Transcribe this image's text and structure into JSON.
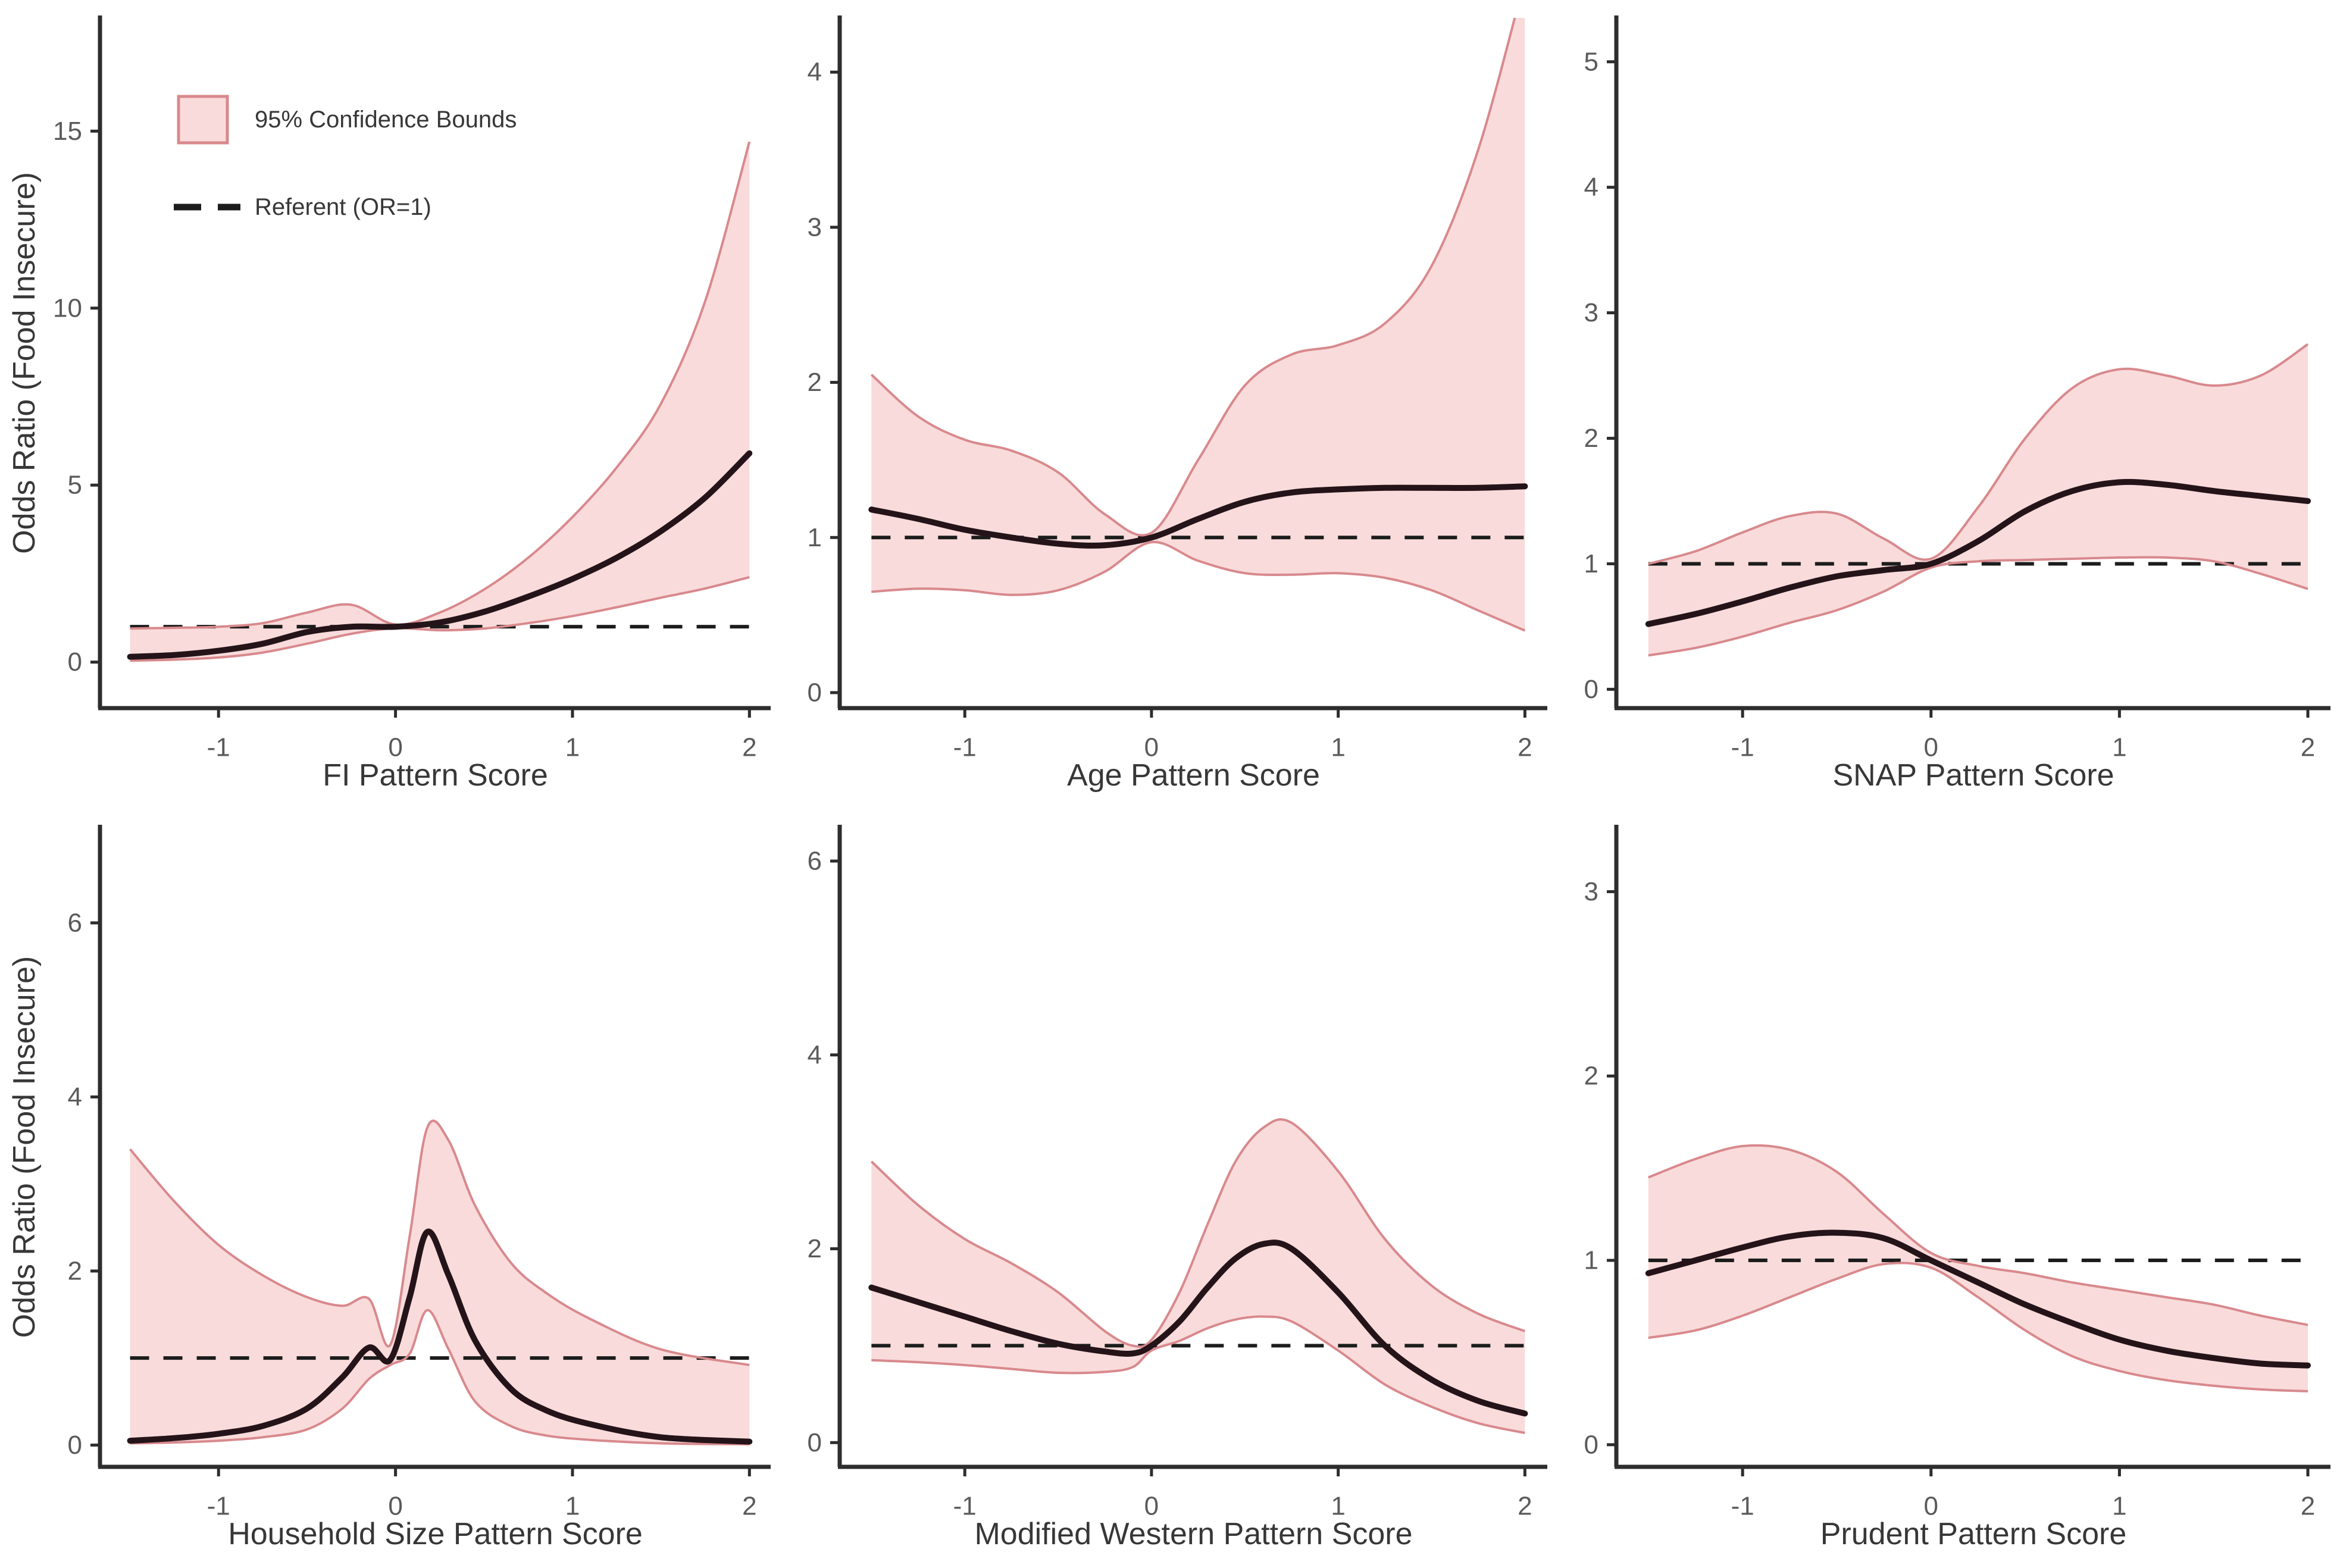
{
  "figure_title": "",
  "y_axis_label": "Odds Ratio (Food Insecure)",
  "legend": {
    "confidence_label": "95% Confidence Bounds",
    "referent_label": "Referent (OR=1)"
  },
  "colors": {
    "background": "#ffffff",
    "ribbon_fill": "#f9dbdb",
    "ribbon_edge": "#d8898d",
    "estimate_line": "#241419",
    "referent_line": "#1c1c1c",
    "spine": "#2d2d2d",
    "tick_label": "#5a5a5a",
    "axis_title": "#373737"
  },
  "chart_data": [
    {
      "key": "fi",
      "type": "line",
      "xlabel": "FI Pattern Score",
      "xlim": [
        -1.67,
        2.12
      ],
      "ylim": [
        -1.3,
        18.2
      ],
      "x_ticks": [
        -1,
        0,
        1,
        2
      ],
      "y_ticks": [
        0,
        5,
        10,
        15
      ],
      "show_y_label": true,
      "show_legend": true,
      "x": [
        -1.5,
        -1.25,
        -1,
        -0.75,
        -0.5,
        -0.25,
        0,
        0.25,
        0.5,
        0.75,
        1,
        1.25,
        1.5,
        1.75,
        2
      ],
      "estimate": [
        0.15,
        0.2,
        0.32,
        0.52,
        0.85,
        1.0,
        1.0,
        1.12,
        1.42,
        1.85,
        2.35,
        2.95,
        3.7,
        4.65,
        5.9
      ],
      "lower": [
        0.04,
        0.07,
        0.13,
        0.27,
        0.52,
        0.8,
        0.96,
        0.9,
        0.95,
        1.1,
        1.3,
        1.55,
        1.82,
        2.08,
        2.4
      ],
      "upper": [
        0.95,
        0.97,
        1.0,
        1.1,
        1.4,
        1.62,
        1.06,
        1.4,
        2.05,
        2.95,
        4.1,
        5.5,
        7.3,
        10.2,
        14.7
      ],
      "referent": 1
    },
    {
      "key": "age",
      "type": "line",
      "xlabel": "Age Pattern Score",
      "xlim": [
        -1.67,
        2.12
      ],
      "ylim": [
        -0.1,
        4.35
      ],
      "x_ticks": [
        -1,
        0,
        1,
        2
      ],
      "y_ticks": [
        0,
        1,
        2,
        3,
        4
      ],
      "show_y_label": false,
      "show_legend": false,
      "x": [
        -1.5,
        -1.25,
        -1,
        -0.75,
        -0.5,
        -0.25,
        0,
        0.25,
        0.5,
        0.75,
        1,
        1.25,
        1.5,
        1.75,
        2
      ],
      "estimate": [
        1.18,
        1.12,
        1.05,
        1.0,
        0.96,
        0.95,
        1.0,
        1.12,
        1.23,
        1.29,
        1.31,
        1.32,
        1.32,
        1.32,
        1.33
      ],
      "lower": [
        0.65,
        0.67,
        0.66,
        0.63,
        0.66,
        0.78,
        0.97,
        0.85,
        0.77,
        0.76,
        0.77,
        0.74,
        0.66,
        0.53,
        0.4
      ],
      "upper": [
        2.05,
        1.78,
        1.63,
        1.56,
        1.42,
        1.15,
        1.03,
        1.5,
        1.98,
        2.18,
        2.24,
        2.38,
        2.75,
        3.5,
        4.6
      ],
      "referent": 1
    },
    {
      "key": "snap",
      "type": "line",
      "xlabel": "SNAP Pattern Score",
      "xlim": [
        -1.67,
        2.12
      ],
      "ylim": [
        -0.15,
        5.35
      ],
      "x_ticks": [
        -1,
        0,
        1,
        2
      ],
      "y_ticks": [
        0,
        1,
        2,
        3,
        4,
        5
      ],
      "show_y_label": false,
      "show_legend": false,
      "x": [
        -1.5,
        -1.25,
        -1,
        -0.75,
        -0.5,
        -0.25,
        0,
        0.25,
        0.5,
        0.75,
        1,
        1.25,
        1.5,
        1.75,
        2
      ],
      "estimate": [
        0.52,
        0.6,
        0.7,
        0.81,
        0.9,
        0.95,
        1.0,
        1.18,
        1.42,
        1.58,
        1.65,
        1.63,
        1.58,
        1.54,
        1.5
      ],
      "lower": [
        0.27,
        0.33,
        0.42,
        0.53,
        0.63,
        0.78,
        0.97,
        1.02,
        1.03,
        1.04,
        1.05,
        1.05,
        1.02,
        0.92,
        0.8
      ],
      "upper": [
        1.0,
        1.1,
        1.25,
        1.38,
        1.4,
        1.2,
        1.04,
        1.45,
        2.0,
        2.4,
        2.55,
        2.5,
        2.42,
        2.5,
        2.75
      ],
      "referent": 1
    },
    {
      "key": "household",
      "type": "line",
      "xlabel": "Household Size Pattern Score",
      "xlim": [
        -1.67,
        2.12
      ],
      "ylim": [
        -0.25,
        7.1
      ],
      "x_ticks": [
        -1,
        0,
        1,
        2
      ],
      "y_ticks": [
        0,
        2,
        4,
        6
      ],
      "show_y_label": true,
      "show_legend": false,
      "x": [
        -1.5,
        -1.25,
        -1,
        -0.75,
        -0.5,
        -0.3,
        -0.15,
        -0.03,
        0.08,
        0.18,
        0.3,
        0.45,
        0.65,
        0.85,
        1.1,
        1.5,
        2
      ],
      "estimate": [
        0.05,
        0.08,
        0.13,
        0.22,
        0.42,
        0.78,
        1.12,
        0.98,
        1.7,
        2.45,
        1.95,
        1.2,
        0.65,
        0.4,
        0.24,
        0.09,
        0.04
      ],
      "lower": [
        0.02,
        0.03,
        0.05,
        0.09,
        0.18,
        0.42,
        0.76,
        0.92,
        1.05,
        1.55,
        1.1,
        0.5,
        0.22,
        0.11,
        0.06,
        0.02,
        0.01
      ],
      "upper": [
        3.4,
        2.8,
        2.3,
        1.95,
        1.7,
        1.6,
        1.68,
        1.15,
        2.4,
        3.65,
        3.5,
        2.75,
        2.1,
        1.75,
        1.45,
        1.1,
        0.92
      ],
      "referent": 1
    },
    {
      "key": "western",
      "type": "line",
      "xlabel": "Modified Western Pattern Score",
      "xlim": [
        -1.67,
        2.12
      ],
      "ylim": [
        -0.25,
        6.35
      ],
      "x_ticks": [
        -1,
        0,
        1,
        2
      ],
      "y_ticks": [
        0,
        2,
        4,
        6
      ],
      "show_y_label": false,
      "show_legend": false,
      "x": [
        -1.5,
        -1.25,
        -1,
        -0.75,
        -0.5,
        -0.25,
        -0.1,
        0,
        0.15,
        0.3,
        0.45,
        0.6,
        0.75,
        1,
        1.25,
        1.5,
        1.75,
        2
      ],
      "estimate": [
        1.6,
        1.45,
        1.3,
        1.15,
        1.02,
        0.94,
        0.92,
        1.0,
        1.25,
        1.6,
        1.9,
        2.05,
        2.0,
        1.55,
        1.0,
        0.65,
        0.43,
        0.3
      ],
      "lower": [
        0.85,
        0.83,
        0.8,
        0.76,
        0.72,
        0.73,
        0.78,
        0.95,
        1.05,
        1.18,
        1.27,
        1.3,
        1.25,
        0.95,
        0.6,
        0.37,
        0.2,
        0.1
      ],
      "upper": [
        2.9,
        2.45,
        2.1,
        1.85,
        1.55,
        1.15,
        1.0,
        1.06,
        1.55,
        2.25,
        2.9,
        3.25,
        3.3,
        2.8,
        2.1,
        1.62,
        1.33,
        1.15
      ],
      "referent": 1
    },
    {
      "key": "prudent",
      "type": "line",
      "xlabel": "Prudent Pattern Score",
      "xlim": [
        -1.67,
        2.12
      ],
      "ylim": [
        -0.12,
        3.35
      ],
      "x_ticks": [
        -1,
        0,
        1,
        2
      ],
      "y_ticks": [
        0,
        1,
        2,
        3
      ],
      "show_y_label": false,
      "show_legend": false,
      "x": [
        -1.5,
        -1.25,
        -1,
        -0.75,
        -0.5,
        -0.25,
        0,
        0.25,
        0.5,
        0.75,
        1,
        1.25,
        1.5,
        1.75,
        2
      ],
      "estimate": [
        0.93,
        1.0,
        1.07,
        1.13,
        1.15,
        1.12,
        1.0,
        0.88,
        0.76,
        0.66,
        0.57,
        0.51,
        0.47,
        0.44,
        0.43
      ],
      "lower": [
        0.58,
        0.62,
        0.7,
        0.8,
        0.9,
        0.98,
        0.96,
        0.8,
        0.62,
        0.48,
        0.4,
        0.35,
        0.32,
        0.3,
        0.29
      ],
      "upper": [
        1.45,
        1.55,
        1.62,
        1.6,
        1.48,
        1.25,
        1.04,
        0.97,
        0.93,
        0.88,
        0.84,
        0.8,
        0.76,
        0.7,
        0.65
      ],
      "referent": 1
    }
  ]
}
